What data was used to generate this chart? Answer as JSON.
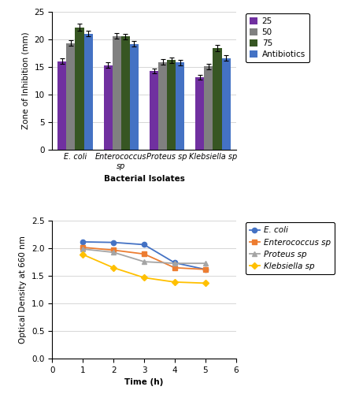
{
  "bar_categories": [
    "E. coli",
    "Enterococcus\nsp",
    "Proteus sp",
    "Klebsiella sp"
  ],
  "bar_series": {
    "25": [
      16.0,
      15.3,
      14.3,
      13.1
    ],
    "50": [
      19.3,
      20.6,
      15.9,
      15.1
    ],
    "75": [
      22.2,
      20.5,
      16.2,
      18.4
    ],
    "Antibiotics": [
      21.0,
      19.2,
      15.8,
      16.6
    ]
  },
  "bar_errors": {
    "25": [
      0.5,
      0.5,
      0.4,
      0.4
    ],
    "50": [
      0.5,
      0.5,
      0.5,
      0.5
    ],
    "75": [
      0.7,
      0.5,
      0.5,
      0.6
    ],
    "Antibiotics": [
      0.5,
      0.5,
      0.5,
      0.5
    ]
  },
  "bar_colors": {
    "25": "#7030A0",
    "50": "#808080",
    "75": "#375623",
    "Antibiotics": "#4472C4"
  },
  "bar_ylim": [
    0,
    25
  ],
  "bar_yticks": [
    0,
    5,
    10,
    15,
    20,
    25
  ],
  "bar_ylabel": "Zone of Inhibition (mm)",
  "bar_xlabel": "Bacterial Isolates",
  "line_x": [
    1,
    2,
    3,
    4,
    5
  ],
  "line_series": {
    "E. coli": [
      2.12,
      2.11,
      2.07,
      1.74,
      1.62
    ],
    "Enterococcus sp": [
      2.02,
      1.97,
      1.9,
      1.65,
      1.62
    ],
    "Proteus sp": [
      1.99,
      1.93,
      1.76,
      1.73,
      1.73
    ],
    "Klebsiella sp": [
      1.89,
      1.65,
      1.47,
      1.39,
      1.37
    ]
  },
  "line_colors": {
    "E. coli": "#4472C4",
    "Enterococcus sp": "#ED7D31",
    "Proteus sp": "#A5A5A5",
    "Klebsiella sp": "#FFC000"
  },
  "line_markers": {
    "E. coli": "o",
    "Enterococcus sp": "s",
    "Proteus sp": "^",
    "Klebsiella sp": "D"
  },
  "line_ylim": [
    0,
    2.5
  ],
  "line_yticks": [
    0,
    0.5,
    1.0,
    1.5,
    2.0,
    2.5
  ],
  "line_xlim": [
    0,
    6
  ],
  "line_xticks": [
    0,
    1,
    2,
    3,
    4,
    5,
    6
  ],
  "line_ylabel": "Optical Density at 660 nm",
  "line_xlabel": "Time (h)"
}
